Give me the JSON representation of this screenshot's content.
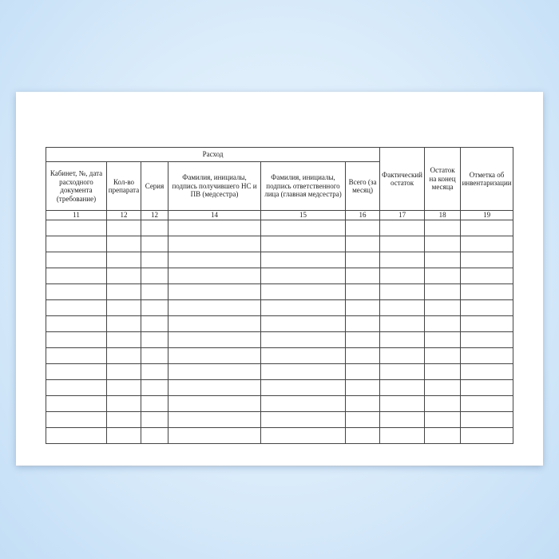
{
  "document": {
    "group_header": "Расход",
    "columns": [
      {
        "label": "Кабинет, №, дата расходного документа (требование)",
        "number": "11"
      },
      {
        "label": "Кол-во препарата",
        "number": "12"
      },
      {
        "label": "Серия",
        "number": "12"
      },
      {
        "label": "Фамилия, инициалы, подпись получившего НС и ПВ (медсестра)",
        "number": "14"
      },
      {
        "label": "Фамилия, инициалы, подпись ответственного лица (главная медсестра)",
        "number": "15"
      },
      {
        "label": "Всего (за месяц)",
        "number": "16"
      },
      {
        "label": "Фактический остаток",
        "number": "17"
      },
      {
        "label": "Остаток на конец месяца",
        "number": "18"
      },
      {
        "label": "Отметка об инвентаризации",
        "number": "19"
      }
    ],
    "empty_rows": 14
  }
}
